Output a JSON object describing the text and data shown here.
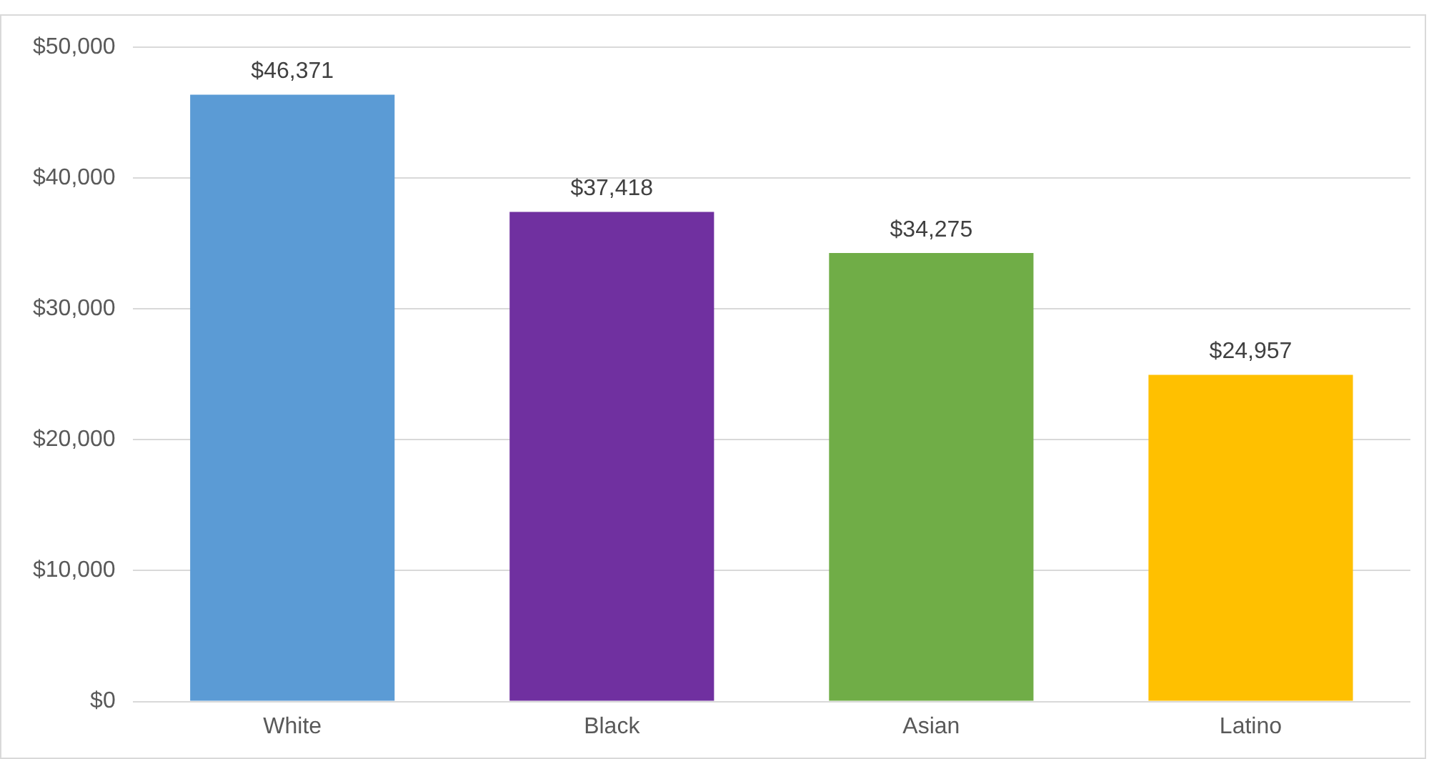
{
  "chart_data": {
    "type": "bar",
    "categories": [
      "White",
      "Black",
      "Asian",
      "Latino"
    ],
    "values": [
      46371,
      37418,
      34275,
      24957
    ],
    "colors": [
      "#5b9bd5",
      "#7030a0",
      "#70ad47",
      "#ffc000"
    ],
    "value_labels": [
      "$46,371",
      "$37,418",
      "$34,275",
      "$24,957"
    ],
    "ylim": [
      0,
      50000
    ],
    "yticks": [
      {
        "value": 0,
        "label": "$0"
      },
      {
        "value": 10000,
        "label": "$10,000"
      },
      {
        "value": 20000,
        "label": "$20,000"
      },
      {
        "value": 30000,
        "label": "$30,000"
      },
      {
        "value": 40000,
        "label": "$40,000"
      },
      {
        "value": 50000,
        "label": "$50,000"
      }
    ],
    "grid": "y",
    "legend": false
  }
}
